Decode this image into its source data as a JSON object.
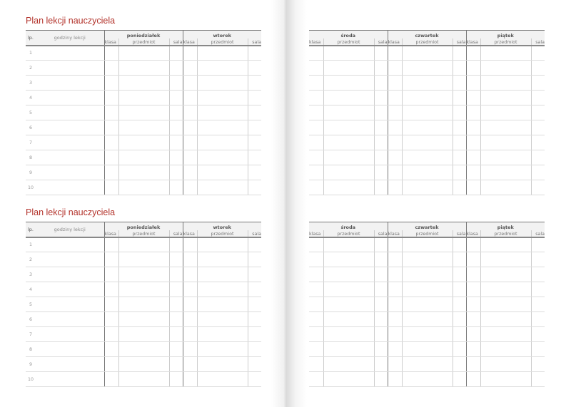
{
  "title": "Plan lekcji nauczyciela",
  "left_headers": {
    "lp": "lp.",
    "hours": "godziny lekcji"
  },
  "left_days": [
    "poniedziałek",
    "wtorek"
  ],
  "right_days": [
    "środa",
    "czwartek",
    "piątek"
  ],
  "sub_columns": [
    "klasa",
    "przedmiot",
    "sala"
  ],
  "row_numbers": [
    "1",
    "2",
    "3",
    "4",
    "5",
    "6",
    "7",
    "8",
    "9",
    "10"
  ],
  "colors": {
    "title": "#b3332b"
  }
}
